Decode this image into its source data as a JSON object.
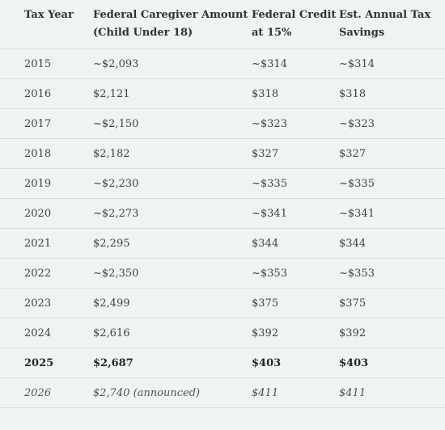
{
  "headers": {
    "year": "Tax Year",
    "amount": "Federal Caregiver Amount (Child Under 18)",
    "credit": "Federal Credit at 15%",
    "savings": "Est. Annual Tax Savings"
  },
  "rows": [
    {
      "year": "2015",
      "amount": "~$2,093",
      "credit": "~$314",
      "savings": "~$314"
    },
    {
      "year": "2016",
      "amount": "$2,121",
      "credit": "$318",
      "savings": "$318"
    },
    {
      "year": "2017",
      "amount": "~$2,150",
      "credit": "~$323",
      "savings": "~$323"
    },
    {
      "year": "2018",
      "amount": "$2,182",
      "credit": "$327",
      "savings": "$327"
    },
    {
      "year": "2019",
      "amount": "~$2,230",
      "credit": "~$335",
      "savings": "~$335"
    },
    {
      "year": "2020",
      "amount": "~$2,273",
      "credit": "~$341",
      "savings": "~$341"
    },
    {
      "year": "2021",
      "amount": "$2,295",
      "credit": "$344",
      "savings": "$344"
    },
    {
      "year": "2022",
      "amount": "~$2,350",
      "credit": "~$353",
      "savings": "~$353"
    },
    {
      "year": "2023",
      "amount": "$2,499",
      "credit": "$375",
      "savings": "$375"
    },
    {
      "year": "2024",
      "amount": "$2,616",
      "credit": "$392",
      "savings": "$392"
    },
    {
      "year": "2025",
      "amount": "$2,687",
      "credit": "$403",
      "savings": "$403"
    },
    {
      "year": "2026",
      "amount": "$2,740 (announced)",
      "credit": "$411",
      "savings": "$411"
    }
  ]
}
